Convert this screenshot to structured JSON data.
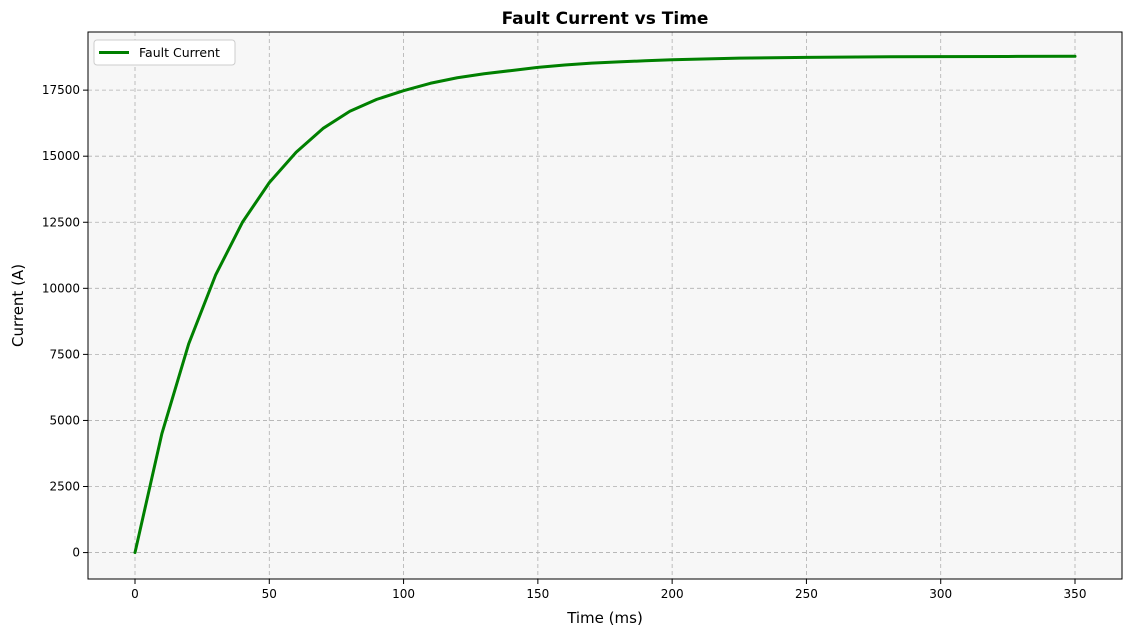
{
  "chart_data": {
    "type": "line",
    "title": "Fault Current vs Time",
    "xlabel": "Time (ms)",
    "ylabel": "Current (A)",
    "xlim": [
      -17.5,
      367.5
    ],
    "ylim": [
      -1000,
      19700
    ],
    "x_ticks": [
      0,
      50,
      100,
      150,
      200,
      250,
      300,
      350
    ],
    "y_ticks": [
      0,
      2500,
      5000,
      7500,
      10000,
      12500,
      15000,
      17500
    ],
    "grid": true,
    "legend": "upper-left",
    "background": "#f7f7f7",
    "series": [
      {
        "name": "Fault Current",
        "color": "#008000",
        "x": [
          0,
          10,
          20,
          30,
          40,
          50,
          60,
          70,
          80,
          90,
          100,
          110,
          120,
          130,
          140,
          150,
          160,
          170,
          180,
          190,
          200,
          225,
          250,
          275,
          300,
          325,
          350
        ],
        "y": [
          0,
          4500,
          7900,
          10500,
          12500,
          14000,
          15150,
          16050,
          16700,
          17150,
          17480,
          17760,
          17970,
          18120,
          18240,
          18360,
          18450,
          18520,
          18570,
          18610,
          18650,
          18710,
          18740,
          18760,
          18770,
          18775,
          18780
        ]
      }
    ]
  }
}
